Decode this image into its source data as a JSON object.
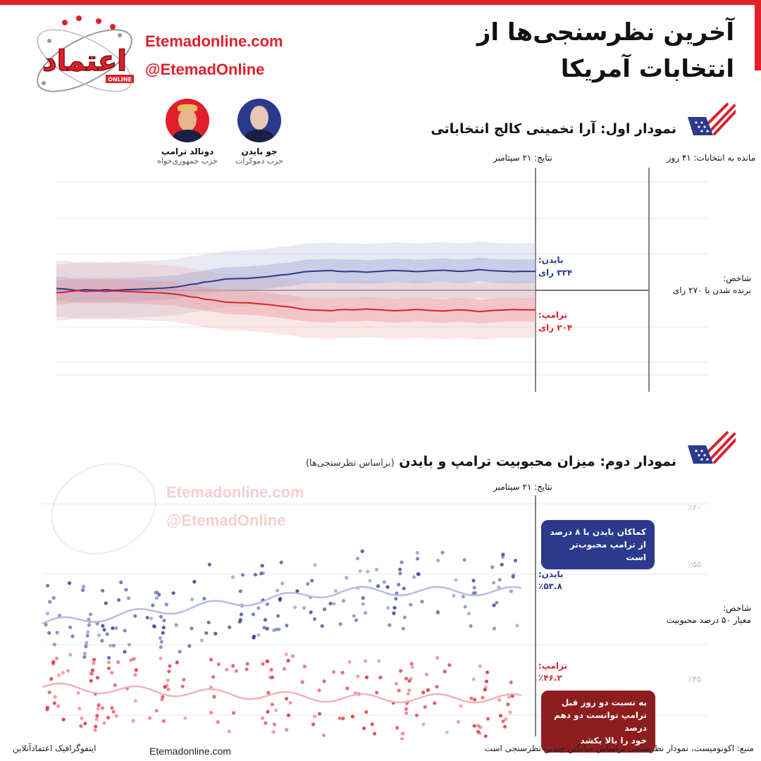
{
  "header": {
    "title_line1": "آخرین نظرسنجی‌ها از",
    "title_line2": "انتخابات آمریکا",
    "site_url": "Etemadonline.com",
    "site_handle": "@EtemadOnline",
    "logo_text": "اعتماد",
    "logo_sub": "ONLINE"
  },
  "candidates": [
    {
      "name": "جو بایدن",
      "party": "حزب دموکرات",
      "color": "#2b3a8c",
      "icon": "biden-avatar"
    },
    {
      "name": "دونالد ترامپ",
      "party": "حزب جمهوری‌خواه",
      "color": "#e0202a",
      "icon": "trump-avatar"
    }
  ],
  "chart1": {
    "title": "نمودار اول: آرا تخمینی کالج انتخاباتی",
    "results_date": "نتایج: ۲۱ سپتامبر",
    "days_left": "مانده به انتخابات: ۴۱ روز",
    "threshold_title": "شاخص:",
    "threshold_text": "برنده شدن با ۲۷۰ رای",
    "biden_label": "بایدن:",
    "biden_value": "۳۳۴ رای",
    "trump_label": "ترامپ:",
    "trump_value": "۲۰۴ رای"
  },
  "chart2": {
    "title": "نمودار دوم: میزان محبوبیت ترامپ و بایدن",
    "subtitle": "(براساس نظرسنجی‌ها)",
    "results_date": "نتایج: ۲۱ سپتامبر",
    "tick_60": "٪۶۰",
    "tick_55": "٪۵۵",
    "tick_45": "٪۴۵",
    "threshold_title": "شاخص:",
    "threshold_text": "معیار ۵۰ درصد محبوبیت",
    "biden_label": "بایدن:",
    "biden_value": "٪۵۳.۸",
    "trump_label": "ترامپ:",
    "trump_value": "٪۴۶.۲",
    "note_biden_line1": "کماکان بایدن با ۸ درصد",
    "note_biden_line2": "از ترامپ محبوب‌تر است",
    "note_trump_line1": "به نسبت دو روز قبل",
    "note_trump_line2": "ترامپ توانست دو دهم درصد",
    "note_trump_line3": "خود را بالا بکشد"
  },
  "footer": {
    "source": "منبع: اکونومیست، نمودار نظرسنجی براساس میانگین چندین نظرسنجی است",
    "site": "Etemadonline.com",
    "credit": "اینفوگرافیک اعتمادآنلاین"
  },
  "colors": {
    "accent": "#e0202a",
    "democrat": "#2b3a8c",
    "republican": "#d9232d"
  },
  "chart_data": [
    {
      "type": "line",
      "title": "نمودار اول: آرا تخمینی کالج انتخاباتی",
      "threshold": 270,
      "x_index": [
        0,
        10,
        20,
        30,
        40,
        50,
        60,
        70,
        80,
        90,
        100,
        110,
        120,
        130,
        140,
        150,
        160,
        170,
        180,
        190,
        200,
        210,
        220,
        230,
        240,
        250,
        260,
        270,
        280,
        290,
        300,
        310,
        320,
        330,
        340,
        350,
        360,
        370,
        380,
        390,
        400,
        410,
        420,
        430,
        440,
        450,
        460,
        470,
        480,
        490,
        500,
        510,
        520,
        530,
        540,
        550,
        560,
        570,
        580,
        590,
        600,
        610,
        620,
        630,
        640,
        650,
        660,
        670,
        680
      ],
      "series": [
        {
          "name": "بایدن",
          "color": "#2b3a8c",
          "values": [
            276,
            275,
            272,
            269,
            272,
            271,
            270,
            272,
            270,
            271,
            272,
            273,
            274,
            275,
            276,
            277,
            279,
            281,
            285,
            290,
            292,
            298,
            300,
            304,
            308,
            309,
            310,
            310,
            312,
            314,
            316,
            319,
            322,
            324,
            328,
            332,
            334,
            335,
            336,
            337,
            334,
            333,
            334,
            333,
            331,
            333,
            334,
            336,
            337,
            336,
            335,
            333,
            334,
            336,
            337,
            338,
            336,
            334,
            335,
            337,
            340,
            338,
            336,
            335,
            334,
            333,
            334,
            334,
            334
          ]
        },
        {
          "name": "ترامپ",
          "color": "#d9232d",
          "values": [
            262,
            263,
            266,
            269,
            266,
            267,
            268,
            266,
            268,
            267,
            266,
            265,
            264,
            263,
            262,
            261,
            259,
            257,
            253,
            248,
            246,
            240,
            238,
            234,
            230,
            229,
            228,
            228,
            226,
            224,
            222,
            219,
            216,
            214,
            210,
            206,
            204,
            203,
            202,
            201,
            204,
            205,
            204,
            205,
            207,
            205,
            204,
            202,
            201,
            202,
            203,
            205,
            204,
            202,
            201,
            200,
            202,
            204,
            203,
            201,
            198,
            200,
            202,
            203,
            204,
            205,
            204,
            204,
            204
          ]
        }
      ]
    },
    {
      "type": "scatter",
      "title": "نمودار دوم: میزان محبوبیت ترامپ و بایدن",
      "ylim": [
        44,
        61
      ],
      "threshold": 50,
      "series": [
        {
          "name": "بایدن",
          "color": "#2b3a8c",
          "latest": 53.8
        },
        {
          "name": "ترامپ",
          "color": "#d9232d",
          "latest": 46.2
        }
      ]
    }
  ]
}
